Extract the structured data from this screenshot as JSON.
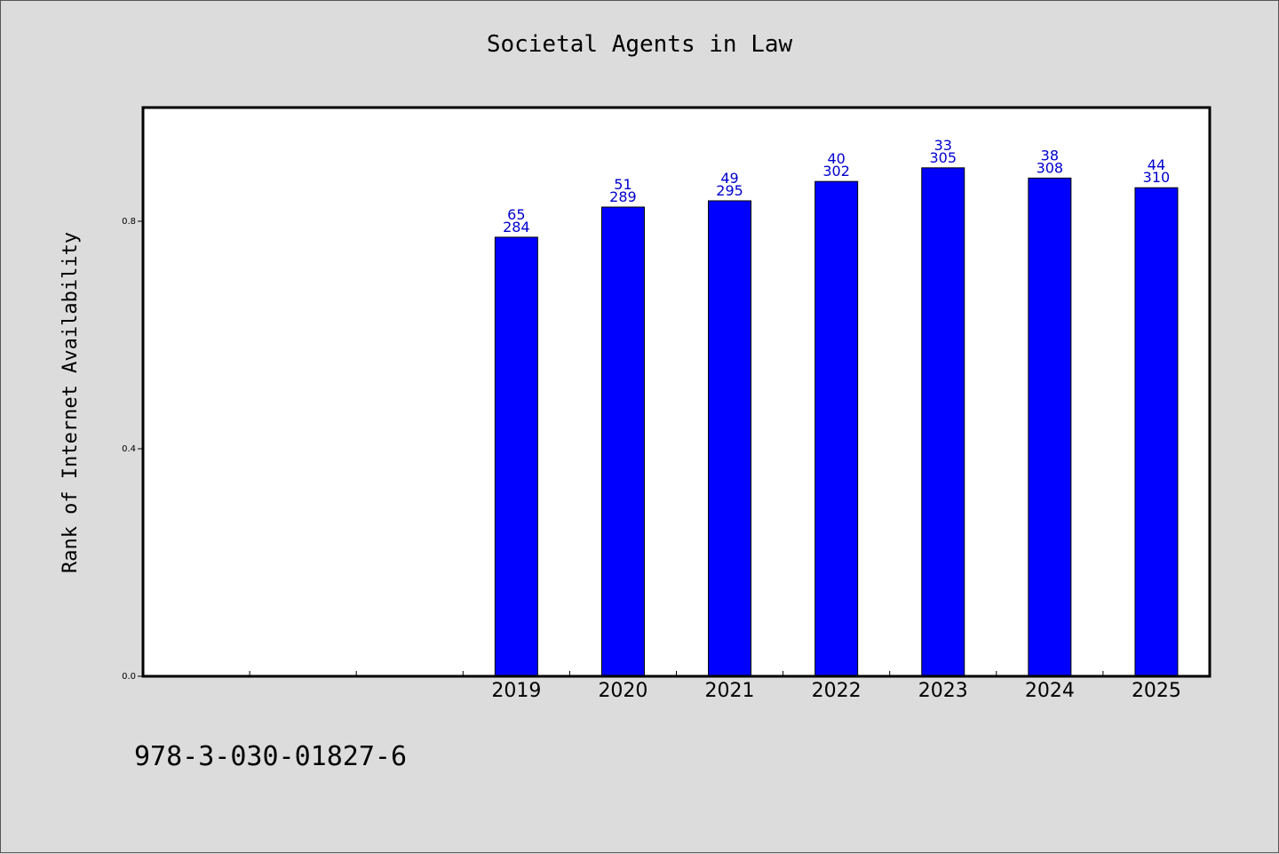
{
  "chart_data": {
    "type": "bar",
    "title": "Societal Agents in Law",
    "ylabel": "Rank of Internet Availability",
    "xlabel": "",
    "categories": [
      "",
      "",
      "",
      "2019",
      "2020",
      "2021",
      "2022",
      "2023",
      "2024",
      "2025"
    ],
    "values": [
      null,
      null,
      null,
      0.772,
      0.825,
      0.836,
      0.87,
      0.894,
      0.876,
      0.859
    ],
    "bar_labels": [
      {
        "top": "",
        "bottom": ""
      },
      {
        "top": "",
        "bottom": ""
      },
      {
        "top": "",
        "bottom": ""
      },
      {
        "top": "65",
        "bottom": "284"
      },
      {
        "top": "51",
        "bottom": "289"
      },
      {
        "top": "49",
        "bottom": "295"
      },
      {
        "top": "40",
        "bottom": "302"
      },
      {
        "top": "33",
        "bottom": "305"
      },
      {
        "top": "38",
        "bottom": "308"
      },
      {
        "top": "44",
        "bottom": "310"
      }
    ],
    "yticks": [
      0.0,
      0.4,
      0.8
    ],
    "ytick_labels": [
      "0.0",
      "0.4",
      "0.8"
    ],
    "ylim": [
      0,
      1.0
    ],
    "grid": false,
    "colors": {
      "bar": "#0000ff",
      "bar_label": "#0000cc",
      "plot_bg": "#ffffff",
      "page_bg": "#dcdcdc"
    }
  },
  "footer": {
    "isbn": "978-3-030-01827-6"
  }
}
